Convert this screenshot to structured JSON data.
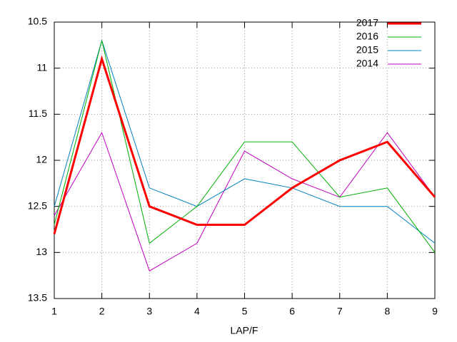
{
  "chart_data": {
    "type": "line",
    "x_label": "LAP/F",
    "x": [
      1,
      2,
      3,
      4,
      5,
      6,
      7,
      8,
      9
    ],
    "xlim": [
      1,
      9
    ],
    "xticks": [
      1,
      2,
      3,
      4,
      5,
      6,
      7,
      8,
      9
    ],
    "ylim": [
      10.5,
      13.5
    ],
    "yticks": [
      10.5,
      11,
      11.5,
      12,
      12.5,
      13,
      13.5
    ],
    "y_reversed": true,
    "grid": true,
    "legend": "top-right",
    "series": [
      {
        "name": "2017",
        "color": "#ff0000",
        "width": 3,
        "values": [
          12.8,
          10.9,
          12.5,
          12.7,
          12.7,
          12.3,
          12.0,
          11.8,
          12.4
        ]
      },
      {
        "name": "2016",
        "color": "#00b000",
        "width": 1,
        "values": [
          12.7,
          10.7,
          12.9,
          12.5,
          11.8,
          11.8,
          12.4,
          12.3,
          13.0
        ]
      },
      {
        "name": "2015",
        "color": "#0080c0",
        "width": 1,
        "values": [
          12.5,
          10.7,
          12.3,
          12.5,
          12.2,
          12.3,
          12.5,
          12.5,
          12.9
        ]
      },
      {
        "name": "2014",
        "color": "#c000c0",
        "width": 1,
        "values": [
          12.6,
          11.7,
          13.2,
          12.9,
          11.9,
          12.2,
          12.4,
          11.7,
          12.4
        ]
      }
    ]
  }
}
